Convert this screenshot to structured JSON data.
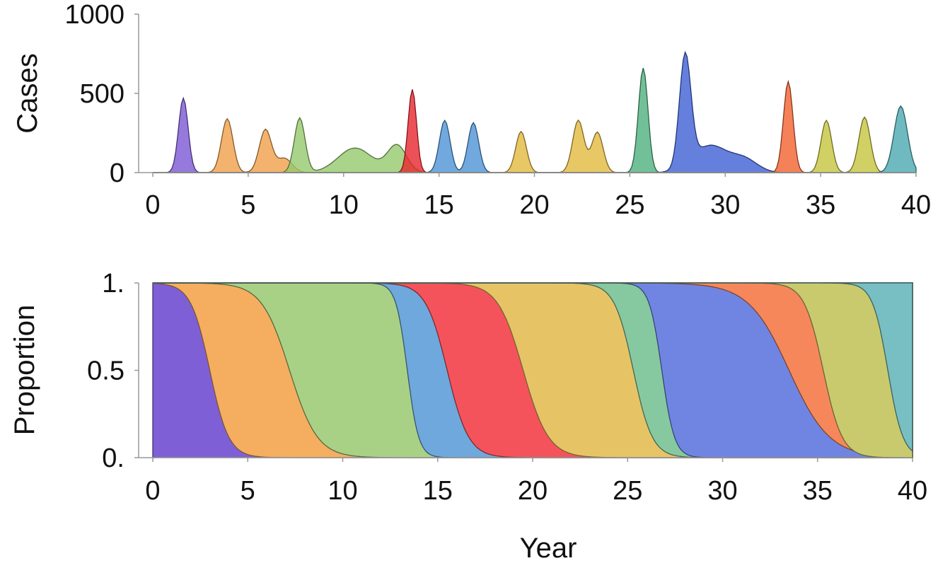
{
  "chart_data": [
    {
      "type": "area",
      "ylabel": "Cases",
      "xlim": [
        0,
        40
      ],
      "ylim": [
        0,
        1000
      ],
      "x_ticks": [
        "0",
        "5",
        "10",
        "15",
        "20",
        "25",
        "30",
        "35",
        "40"
      ],
      "y_ticks": [
        "0",
        "500",
        "1000"
      ],
      "grid": false,
      "series": [
        {
          "color": "#7b57d4",
          "peaks": [
            [
              1.6,
              470,
              0.25
            ]
          ]
        },
        {
          "color": "#f0a04a",
          "peaks": [
            [
              3.9,
              340,
              0.3
            ],
            [
              5.9,
              270,
              0.32
            ],
            [
              6.9,
              90,
              0.4
            ]
          ]
        },
        {
          "color": "#95c96b",
          "peaks": [
            [
              7.7,
              345,
              0.28
            ],
            [
              10.6,
              155,
              0.9
            ],
            [
              12.8,
              170,
              0.5
            ]
          ]
        },
        {
          "color": "#e8252e",
          "peaks": [
            [
              13.6,
              525,
              0.22
            ]
          ]
        },
        {
          "color": "#4d93d6",
          "peaks": [
            [
              15.3,
              330,
              0.28
            ],
            [
              16.8,
              315,
              0.28
            ]
          ]
        },
        {
          "color": "#e2b93f",
          "peaks": [
            [
              19.3,
              260,
              0.28
            ],
            [
              22.3,
              330,
              0.3
            ],
            [
              23.3,
              255,
              0.3
            ]
          ]
        },
        {
          "color": "#4fb07d",
          "peaks": [
            [
              25.7,
              660,
              0.25
            ]
          ]
        },
        {
          "color": "#3f5fd4",
          "peaks": [
            [
              27.9,
              700,
              0.3
            ],
            [
              29.2,
              170,
              0.9
            ],
            [
              31.0,
              80,
              0.7
            ]
          ]
        },
        {
          "color": "#f2622e",
          "peaks": [
            [
              33.3,
              575,
              0.25
            ]
          ]
        },
        {
          "color": "#c6c43f",
          "peaks": [
            [
              35.3,
              330,
              0.28
            ],
            [
              37.3,
              350,
              0.3
            ]
          ]
        },
        {
          "color": "#4aa9b0",
          "peaks": [
            [
              39.2,
              420,
              0.35
            ]
          ]
        }
      ]
    },
    {
      "type": "area",
      "xlabel": "Year",
      "ylabel": "Proportion",
      "xlim": [
        0,
        40
      ],
      "ylim": [
        0,
        1
      ],
      "x_ticks": [
        "0",
        "5",
        "10",
        "15",
        "20",
        "25",
        "30",
        "35",
        "40"
      ],
      "y_ticks": [
        "0.",
        "0.5",
        "1."
      ],
      "grid": false,
      "stacked": true,
      "series": [
        {
          "color": "#7f5fd6",
          "start": 0.0,
          "mid": null
        },
        {
          "color": "#f5ae5f",
          "start": 1.5,
          "mid": 3.0
        },
        {
          "color": "#a9d186",
          "start": 5.0,
          "mid": 7.2
        },
        {
          "color": "#6ea8dc",
          "start": 12.5,
          "mid": 13.4
        },
        {
          "color": "#f5535b",
          "start": 13.8,
          "mid": 15.5
        },
        {
          "color": "#e6c466",
          "start": 17.5,
          "mid": 19.5
        },
        {
          "color": "#86c9a1",
          "start": 23.8,
          "mid": 25.3
        },
        {
          "color": "#7085e2",
          "start": 25.8,
          "mid": 26.8
        },
        {
          "color": "#f6875a",
          "start": 30.3,
          "mid": 33.5
        },
        {
          "color": "#c9ca6d",
          "start": 33.8,
          "mid": 35.3
        },
        {
          "color": "#77bfc2",
          "start": 37.5,
          "mid": 38.7
        }
      ]
    }
  ]
}
